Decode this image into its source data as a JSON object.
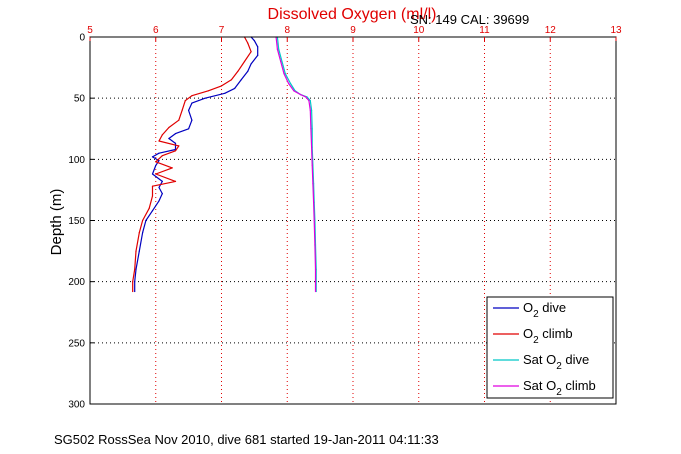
{
  "title": "Dissolved Oxygen (ml/l)",
  "serial_cal": "SN: 149  CAL: 39699",
  "footer": "SG502 RossSea Nov 2010, dive 681 started 19-Jan-2011 04:11:33",
  "chart_data": {
    "type": "line",
    "ylabel": "Depth (m)",
    "xlim": [
      5,
      13
    ],
    "ylim": [
      0,
      300
    ],
    "y_reversed": true,
    "x_axis_position": "top",
    "grid": true,
    "legend_position": "bottom-right",
    "xticks": [
      "5",
      "6",
      "7",
      "8",
      "9",
      "10",
      "11",
      "12",
      "13"
    ],
    "yticks": [
      "0",
      "50",
      "100",
      "150",
      "200",
      "250",
      "300"
    ],
    "series": [
      {
        "name": "O2 dive",
        "legend_main": "O",
        "legend_sub": "2",
        "legend_suffix": " dive",
        "legend_prefix": "",
        "color": "#0000c0",
        "points": [
          [
            7.45,
            0
          ],
          [
            7.5,
            3
          ],
          [
            7.55,
            8
          ],
          [
            7.55,
            15
          ],
          [
            7.45,
            22
          ],
          [
            7.4,
            28
          ],
          [
            7.3,
            35
          ],
          [
            7.2,
            42
          ],
          [
            7.05,
            46
          ],
          [
            6.75,
            50
          ],
          [
            6.55,
            54
          ],
          [
            6.5,
            60
          ],
          [
            6.55,
            68
          ],
          [
            6.5,
            75
          ],
          [
            6.3,
            79
          ],
          [
            6.2,
            83
          ],
          [
            6.3,
            87
          ],
          [
            6.3,
            92
          ],
          [
            6.05,
            95
          ],
          [
            5.95,
            98
          ],
          [
            6.05,
            101
          ],
          [
            6.0,
            105
          ],
          [
            5.95,
            112
          ],
          [
            6.1,
            118
          ],
          [
            6.05,
            123
          ],
          [
            6.1,
            128
          ],
          [
            6.05,
            134
          ],
          [
            5.95,
            142
          ],
          [
            5.85,
            150
          ],
          [
            5.8,
            160
          ],
          [
            5.75,
            175
          ],
          [
            5.7,
            190
          ],
          [
            5.68,
            200
          ],
          [
            5.68,
            208
          ]
        ]
      },
      {
        "name": "O2 climb",
        "legend_main": "O",
        "legend_sub": "2",
        "legend_suffix": " climb",
        "legend_prefix": "",
        "color": "#e00000",
        "points": [
          [
            7.35,
            0
          ],
          [
            7.4,
            5
          ],
          [
            7.45,
            12
          ],
          [
            7.35,
            20
          ],
          [
            7.25,
            28
          ],
          [
            7.15,
            35
          ],
          [
            7.0,
            40
          ],
          [
            6.8,
            44
          ],
          [
            6.55,
            48
          ],
          [
            6.45,
            52
          ],
          [
            6.4,
            60
          ],
          [
            6.35,
            68
          ],
          [
            6.2,
            74
          ],
          [
            6.1,
            80
          ],
          [
            6.05,
            85
          ],
          [
            6.35,
            89
          ],
          [
            6.3,
            93
          ],
          [
            6.1,
            97
          ],
          [
            6.0,
            102
          ],
          [
            6.25,
            107
          ],
          [
            6.0,
            112
          ],
          [
            6.3,
            118
          ],
          [
            5.95,
            122
          ],
          [
            5.95,
            130
          ],
          [
            5.9,
            140
          ],
          [
            5.8,
            150
          ],
          [
            5.75,
            160
          ],
          [
            5.7,
            175
          ],
          [
            5.68,
            190
          ],
          [
            5.65,
            200
          ],
          [
            5.65,
            208
          ]
        ]
      },
      {
        "name": "Sat O2 dive",
        "legend_main": "Sat O",
        "legend_sub": "2",
        "legend_suffix": " dive",
        "color": "#00c8c8",
        "points": [
          [
            7.85,
            0
          ],
          [
            7.87,
            10
          ],
          [
            7.92,
            20
          ],
          [
            7.97,
            30
          ],
          [
            8.05,
            38
          ],
          [
            8.12,
            44
          ],
          [
            8.2,
            47
          ],
          [
            8.3,
            49
          ],
          [
            8.35,
            52
          ],
          [
            8.37,
            60
          ],
          [
            8.38,
            75
          ],
          [
            8.38,
            90
          ],
          [
            8.39,
            105
          ],
          [
            8.4,
            120
          ],
          [
            8.41,
            135
          ],
          [
            8.42,
            150
          ],
          [
            8.43,
            170
          ],
          [
            8.44,
            190
          ],
          [
            8.44,
            208
          ]
        ]
      },
      {
        "name": "Sat O2 climb",
        "legend_main": "Sat O",
        "legend_sub": "2",
        "legend_suffix": " climb",
        "color": "#e000e0",
        "points": [
          [
            7.83,
            0
          ],
          [
            7.85,
            10
          ],
          [
            7.9,
            20
          ],
          [
            7.95,
            30
          ],
          [
            8.02,
            38
          ],
          [
            8.1,
            44
          ],
          [
            8.2,
            47
          ],
          [
            8.28,
            49
          ],
          [
            8.33,
            52
          ],
          [
            8.35,
            60
          ],
          [
            8.36,
            75
          ],
          [
            8.37,
            90
          ],
          [
            8.38,
            105
          ],
          [
            8.39,
            120
          ],
          [
            8.4,
            135
          ],
          [
            8.41,
            150
          ],
          [
            8.42,
            170
          ],
          [
            8.43,
            190
          ],
          [
            8.43,
            208
          ]
        ]
      }
    ]
  }
}
